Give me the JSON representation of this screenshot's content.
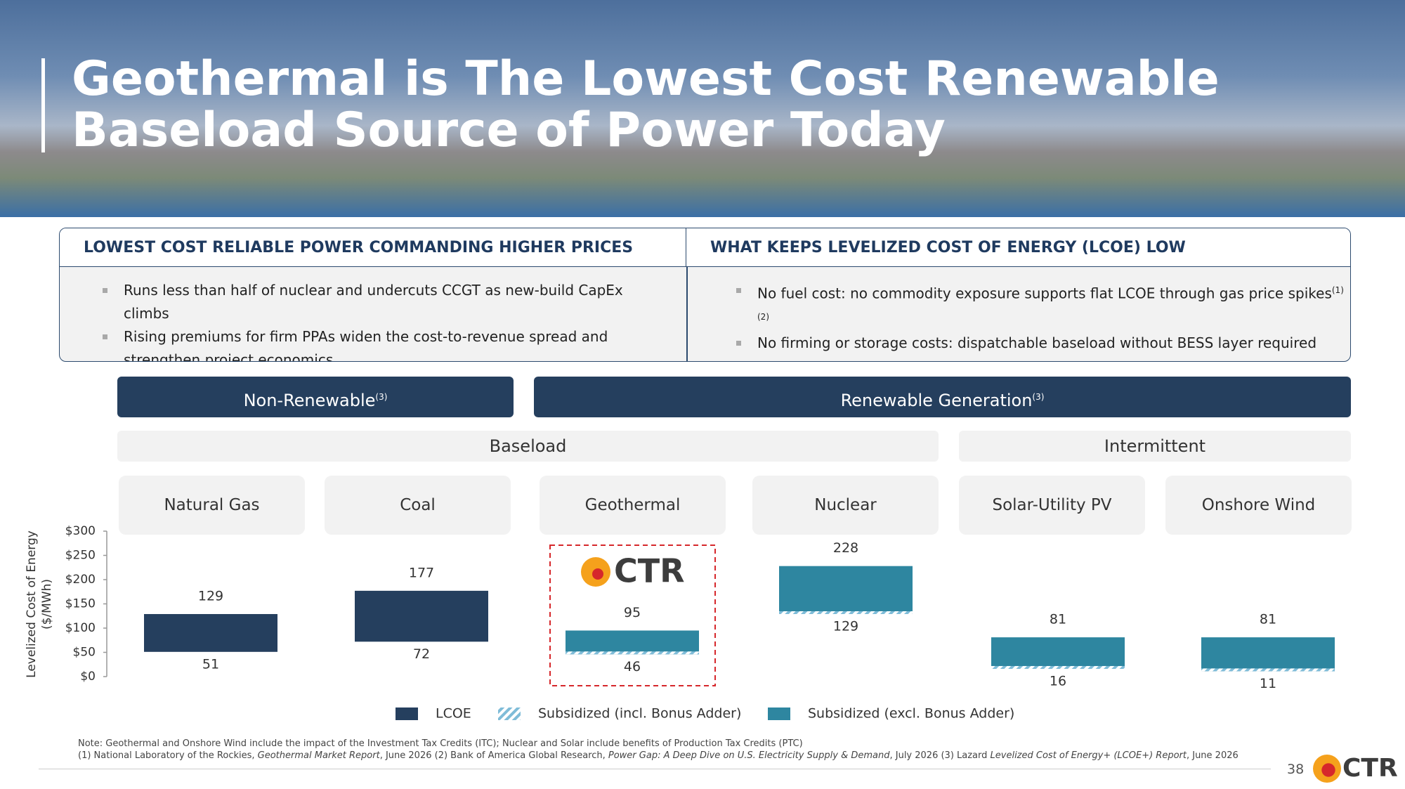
{
  "header": {
    "title": [
      "Geothermal is The Lowest Cost Renewable",
      "Baseload Source of Power Today"
    ]
  },
  "panels": [
    {
      "heading": "LOWEST COST RELIABLE POWER COMMANDING HIGHER PRICES",
      "bullets": [
        {
          "text": "Runs less than half of nuclear and undercuts CCGT as new-build CapEx climbs"
        },
        {
          "text": "Rising premiums for firm PPAs widen the cost-to-revenue spread and strengthen project economics"
        }
      ]
    },
    {
      "heading": "WHAT KEEPS LEVELIZED COST OF ENERGY (LCOE) LOW",
      "bullets": [
        {
          "text": "No fuel cost: no commodity exposure supports flat LCOE through gas price spikes",
          "sup": "(1)(2)"
        },
        {
          "text": "No firming or storage costs: dispatchable baseload without BESS layer required"
        }
      ]
    }
  ],
  "groups": [
    {
      "label": "Non-Renewable",
      "sup": "(3)"
    },
    {
      "label": "Renewable Generation",
      "sup": "(3)"
    }
  ],
  "subgroups": [
    "Baseload",
    "Intermittent"
  ],
  "chart_data": {
    "type": "floating-bar",
    "y_label": [
      "Levelized Cost of Energy",
      "($/MWh)"
    ],
    "categories": [
      "Natural Gas",
      "Coal",
      "Geothermal",
      "Nuclear",
      "Solar-Utility PV",
      "Onshore Wind"
    ],
    "ylim": [
      0,
      300
    ],
    "yticks": [
      {
        "value": 0,
        "label": "$0"
      },
      {
        "value": 50,
        "label": "$50"
      },
      {
        "value": 100,
        "label": "$100"
      },
      {
        "value": 150,
        "label": "$150"
      },
      {
        "value": 200,
        "label": "$200"
      },
      {
        "value": 250,
        "label": "$250"
      },
      {
        "value": 300,
        "label": "$300"
      }
    ],
    "series": [
      {
        "name": "LCOE",
        "color": "#253f5e",
        "values": [
          [
            51,
            129
          ],
          [
            72,
            177
          ],
          null,
          null,
          null,
          null
        ]
      },
      {
        "name": "Subsidized (incl. Bonus Adder)",
        "color": "#7fbcd8",
        "pattern": "hatch"
      },
      {
        "name": "Subsidized (excl. Bonus Adder)",
        "color": "#2e86a0",
        "hatched_base": true,
        "values": [
          null,
          null,
          [
            46,
            95
          ],
          [
            129,
            228
          ],
          [
            16,
            81
          ],
          [
            11,
            81
          ]
        ]
      }
    ],
    "highlight_category": "Geothermal",
    "legend": "bottom"
  },
  "notes": {
    "line1": "Note: Geothermal and Onshore Wind include the impact of the Investment Tax Credits (ITC); Nuclear and Solar include benefits of Production Tax Credits (PTC)",
    "line2": [
      "(1) National Laboratory of the Rockies, ",
      "Geothermal Market Report",
      ", June 2026 (2) Bank of America Global Research, ",
      "Power Gap: A Deep Dive on U.S. Electricity Supply & Demand",
      ", July 2026 (3) Lazard ",
      "Levelized Cost of Energy+ (LCOE+) Report",
      ", June 2026"
    ]
  },
  "footer": {
    "page": "38",
    "logo": "CTR"
  }
}
